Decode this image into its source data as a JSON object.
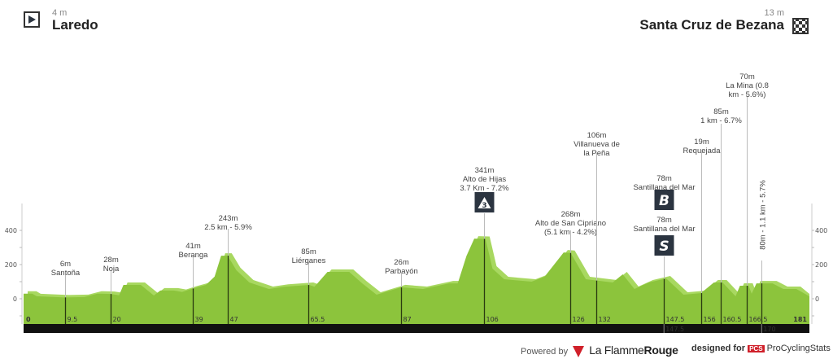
{
  "start": {
    "altitude": "4 m",
    "city": "Laredo",
    "icon": "start-flag-icon"
  },
  "finish": {
    "altitude": "13 m",
    "city": "Santa Cruz de Bezana",
    "icon": "checkered-flag-icon"
  },
  "footer": {
    "powered_by": "Powered by",
    "brand1": "La Flamme",
    "brand1b": "Rouge",
    "designed_for": "designed for",
    "pcs": "PCS",
    "brand2": "ProCyclingStats"
  },
  "colors": {
    "profile": "#8cc43c",
    "profile_light": "#a8d860",
    "bar": "#111111",
    "icon_bg": "#2b3440"
  },
  "chart_data": {
    "type": "area",
    "title": "",
    "xlabel": "",
    "ylabel": "",
    "xlim": [
      0,
      181
    ],
    "ylim": [
      -100,
      500
    ],
    "y_ticks": [
      0,
      200,
      400
    ],
    "x_start_label": "0",
    "x_end_label": "181",
    "profile": [
      [
        0,
        30
      ],
      [
        2,
        30
      ],
      [
        3,
        15
      ],
      [
        9.5,
        8
      ],
      [
        14,
        10
      ],
      [
        17,
        30
      ],
      [
        20,
        28
      ],
      [
        22,
        20
      ],
      [
        23,
        81
      ],
      [
        27,
        81
      ],
      [
        30,
        19
      ],
      [
        31.5,
        48
      ],
      [
        34.6,
        48
      ],
      [
        36.5,
        40
      ],
      [
        39,
        60
      ],
      [
        42,
        81
      ],
      [
        44,
        130
      ],
      [
        45.5,
        252
      ],
      [
        47,
        252
      ],
      [
        49,
        167
      ],
      [
        52,
        95
      ],
      [
        56.5,
        57
      ],
      [
        60,
        70
      ],
      [
        65.8,
        81
      ],
      [
        67,
        70
      ],
      [
        70,
        157
      ],
      [
        75,
        157
      ],
      [
        78,
        90
      ],
      [
        81.3,
        24
      ],
      [
        87,
        67
      ],
      [
        92,
        57
      ],
      [
        98,
        90
      ],
      [
        100,
        90
      ],
      [
        102,
        250
      ],
      [
        103.8,
        352
      ],
      [
        106.4,
        350
      ],
      [
        108,
        176
      ],
      [
        110.7,
        114
      ],
      [
        117,
        100
      ],
      [
        120,
        129
      ],
      [
        124.4,
        271
      ],
      [
        126,
        268
      ],
      [
        129.5,
        114
      ],
      [
        135.7,
        95
      ],
      [
        138,
        143
      ],
      [
        140.7,
        57
      ],
      [
        144,
        95
      ],
      [
        148,
        119
      ],
      [
        152,
        24
      ],
      [
        156,
        33
      ],
      [
        159,
        95
      ],
      [
        161,
        95
      ],
      [
        164,
        14
      ],
      [
        165,
        76
      ],
      [
        167,
        76
      ],
      [
        167.7,
        30
      ],
      [
        168.8,
        90
      ],
      [
        172.5,
        90
      ],
      [
        175,
        57
      ],
      [
        178,
        57
      ],
      [
        181,
        14
      ]
    ],
    "markers": [
      {
        "km": "9.5",
        "lines": [
          "6m",
          "Santoña"
        ]
      },
      {
        "km": "20",
        "lines": [
          "28m",
          "Noja"
        ]
      },
      {
        "km": "39",
        "lines": [
          "41m",
          "Beranga"
        ]
      },
      {
        "km": "47",
        "lines": [
          "243m",
          "2.5 km - 5.9%"
        ]
      },
      {
        "km": "65.5",
        "lines": [
          "85m",
          "Liérganes"
        ]
      },
      {
        "km": "87",
        "lines": [
          "26m",
          "Parbayón"
        ]
      },
      {
        "km": "106",
        "lines": [
          "341m",
          "Alto de Hijas",
          "3.7 Km - 7.2%"
        ],
        "icon": "cat-3-climb-icon",
        "icon_text": "3"
      },
      {
        "km": "126",
        "lines": [
          "268m",
          "Alto de San Cipriano",
          "(5.1 km - 4.2%)"
        ]
      },
      {
        "km": "132",
        "lines": [
          "106m",
          "Villanueva de",
          "la Peña"
        ]
      },
      {
        "km": "147.5",
        "lines": [
          "78m",
          "Santillana del Mar"
        ],
        "icon": "bonus-sprint-icon",
        "icon_text": "B",
        "lines2": [
          "78m",
          "Santillana del Mar"
        ],
        "icon2": "intermediate-sprint-icon",
        "icon2_text": "S"
      },
      {
        "km": "156",
        "lines": [
          "19m",
          "Requejada"
        ]
      },
      {
        "km": "160.5",
        "lines": [
          "85m",
          "1 km - 6.7%"
        ]
      },
      {
        "km": "166.5",
        "lines": [
          "70m",
          "La Mina (0.8",
          "km - 5.6%)"
        ]
      },
      {
        "km": "170",
        "lines": [
          "80m - 1.1 km - 5.7%"
        ],
        "rotated": true,
        "bar_label": "170"
      }
    ],
    "bar_labels": [
      "147.5",
      "170"
    ]
  }
}
